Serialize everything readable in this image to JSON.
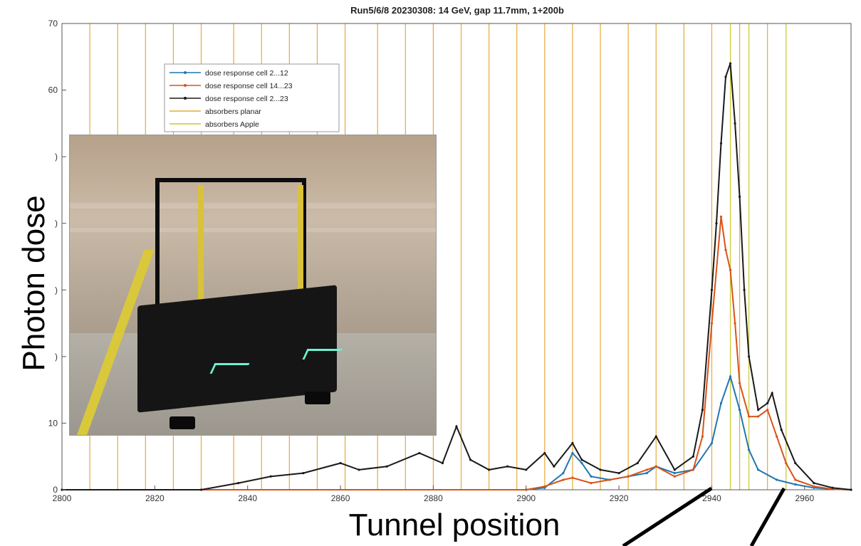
{
  "chart_data": {
    "type": "line",
    "title": "Run5/6/8 20230308: 14 GeV, gap 11.7mm, 1+200b",
    "xlabel": "Tunnel position",
    "ylabel": "Photon dose",
    "xlim": [
      2800,
      2970
    ],
    "ylim": [
      0,
      70
    ],
    "x_ticks": [
      2800,
      2820,
      2840,
      2860,
      2880,
      2900,
      2920,
      2940,
      2960
    ],
    "y_ticks": [
      0,
      10,
      20,
      30,
      40,
      50,
      60,
      70
    ],
    "y_tick_labels": [
      "0",
      "10",
      ")",
      ")",
      ")",
      ")",
      "60",
      "70"
    ],
    "grid": false,
    "legend_position": "top-left",
    "absorbers_planar": [
      2806,
      2812,
      2818,
      2824,
      2830,
      2837,
      2843,
      2849,
      2855,
      2861,
      2868,
      2874,
      2880,
      2886,
      2892,
      2898,
      2904,
      2910,
      2916,
      2922,
      2928,
      2934,
      2940,
      2946,
      2952
    ],
    "absorbers_apple": [
      2944,
      2948,
      2956
    ],
    "series": [
      {
        "name": "dose response cell 2...12",
        "color": "#1f77b4",
        "x": [
          2800,
          2900,
          2904,
          2908,
          2910,
          2912,
          2914,
          2918,
          2922,
          2926,
          2928,
          2932,
          2936,
          2940,
          2942,
          2944,
          2946,
          2948,
          2950,
          2954,
          2958,
          2962,
          2966,
          2970
        ],
        "y": [
          0,
          0,
          0.3,
          2.5,
          5.5,
          4,
          2,
          1.5,
          2,
          2.5,
          3.5,
          2.5,
          3,
          7,
          13,
          17,
          12,
          6,
          3,
          1.5,
          0.8,
          0.3,
          0.1,
          0
        ]
      },
      {
        "name": "dose response cell 14...23",
        "color": "#d95319",
        "x": [
          2800,
          2900,
          2904,
          2908,
          2910,
          2914,
          2918,
          2922,
          2926,
          2928,
          2932,
          2936,
          2938,
          2940,
          2942,
          2943,
          2944,
          2945,
          2946,
          2948,
          2950,
          2952,
          2954,
          2956,
          2958,
          2962,
          2966,
          2970
        ],
        "y": [
          0,
          0,
          0.5,
          1.5,
          1.8,
          1,
          1.5,
          2,
          3,
          3.5,
          2,
          3,
          8,
          25,
          41,
          36,
          33,
          25,
          16,
          11,
          11,
          12,
          8,
          4,
          1.5,
          0.5,
          0.1,
          0
        ]
      },
      {
        "name": "dose response cell 2...23",
        "color": "#1a1a1a",
        "x": [
          2800,
          2830,
          2838,
          2845,
          2852,
          2860,
          2864,
          2870,
          2877,
          2882,
          2885,
          2888,
          2892,
          2896,
          2900,
          2904,
          2906,
          2910,
          2912,
          2916,
          2920,
          2924,
          2928,
          2932,
          2936,
          2938,
          2940,
          2941,
          2942,
          2943,
          2944,
          2945,
          2946,
          2947,
          2948,
          2950,
          2952,
          2953,
          2955,
          2958,
          2962,
          2966,
          2970
        ],
        "y": [
          0,
          0,
          1,
          2,
          2.5,
          4,
          3,
          3.5,
          5.5,
          4,
          9.5,
          4.5,
          3,
          3.5,
          3,
          5.5,
          3.5,
          7,
          4.5,
          3,
          2.5,
          4,
          8,
          3,
          5,
          12,
          30,
          40,
          52,
          62,
          64,
          55,
          44,
          30,
          20,
          12,
          13,
          14.5,
          9,
          4,
          1,
          0.3,
          0
        ]
      }
    ],
    "legend": [
      {
        "label": "dose response cell 2...12",
        "color": "#1f77b4",
        "style": "line-marker"
      },
      {
        "label": "dose response cell 14...23",
        "color": "#d95319",
        "style": "line-marker"
      },
      {
        "label": "dose response cell 2...23",
        "color": "#1a1a1a",
        "style": "line-marker"
      },
      {
        "label": "absorbers planar",
        "color": "#e8a93a",
        "style": "line"
      },
      {
        "label": "absorbers Apple",
        "color": "#c9c92c",
        "style": "line"
      }
    ]
  }
}
